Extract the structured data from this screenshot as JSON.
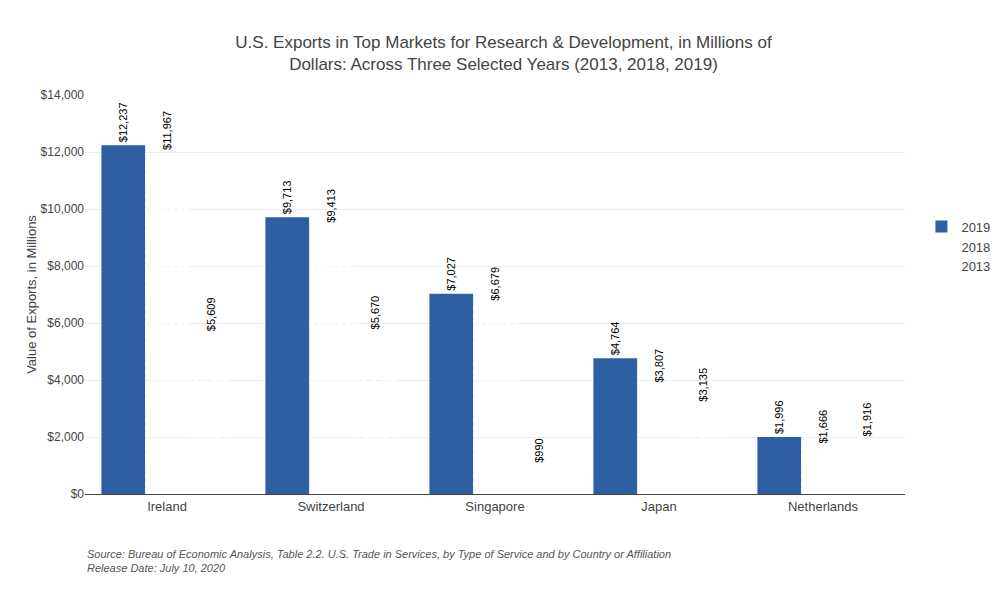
{
  "chart_data": {
    "type": "bar",
    "title": "U.S. Exports in Top Markets for Research & Development, in Millions of\nDollars: Across Three Selected Years (2013, 2018, 2019)",
    "ylabel": "Value of Exports, in Millions",
    "annotations": [
      "Source: Bureau of Economic Analysis, Table 2.2. U.S. Trade in Services, by Type of Service and by Country or Affiliation\nRelease Date: July 10, 2020"
    ],
    "categories": [
      "Ireland",
      "Switzerland",
      "Singapore",
      "Japan",
      "Netherlands"
    ],
    "series": [
      {
        "name": "2019",
        "color": "#2E5FA3",
        "values": [
          12237,
          9713,
          7027,
          4764,
          1996
        ],
        "value_labels": [
          "$12,237",
          "$9,713",
          "$7,027",
          "$4,764",
          "$1,996"
        ]
      },
      {
        "name": "2018",
        "color": "#C0312B",
        "values": [
          11967,
          9413,
          6679,
          3807,
          1666
        ],
        "value_labels": [
          "$11,967",
          "$9,413",
          "$6,679",
          "$3,807",
          "$1,666"
        ]
      },
      {
        "name": "2013",
        "color": "#7DC8E8",
        "values": [
          5609,
          5670,
          990,
          3135,
          1916
        ],
        "value_labels": [
          "$5,609",
          "$5,670",
          "$990",
          "$3,135",
          "$1,916"
        ]
      }
    ],
    "ylim": [
      0,
      14000
    ],
    "yticks": [
      {
        "value": 0,
        "label": "$0"
      },
      {
        "value": 2000,
        "label": "$2,000"
      },
      {
        "value": 4000,
        "label": "$4,000"
      },
      {
        "value": 6000,
        "label": "$6,000"
      },
      {
        "value": 8000,
        "label": "$8,000"
      },
      {
        "value": 10000,
        "label": "$10,000"
      },
      {
        "value": 12000,
        "label": "$12,000"
      },
      {
        "value": 14000,
        "label": "$14,000"
      }
    ],
    "grid": true,
    "legend": "right",
    "data_labels": true
  }
}
